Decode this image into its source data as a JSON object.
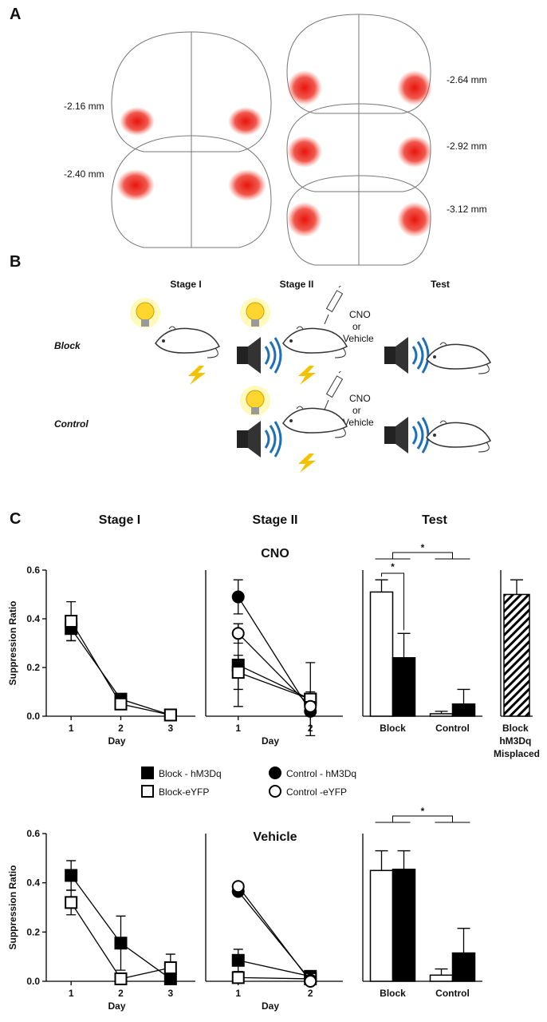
{
  "panels": {
    "A": {
      "label": "A",
      "levels": [
        "-2.16 mm",
        "-2.40 mm",
        "-2.64 mm",
        "-2.92 mm",
        "-3.12 mm"
      ]
    },
    "B": {
      "label": "B",
      "headings": [
        "Stage I",
        "Stage II",
        "Test"
      ],
      "rows": [
        "Block",
        "Control"
      ],
      "injection": [
        [
          "CNO",
          "or",
          "Vehicle"
        ],
        [
          "CNO",
          "or",
          "Vehicle"
        ]
      ]
    },
    "C": {
      "label": "C",
      "headings": [
        "Stage I",
        "Stage II",
        "Test"
      ],
      "rows": [
        "CNO",
        "Vehicle"
      ]
    }
  },
  "chart_data": [
    {
      "type": "line",
      "ylabel": "Suppression Ratio",
      "xlabel": "Day",
      "x": [
        1,
        2,
        3
      ],
      "xlim": [
        0.5,
        3.5
      ],
      "xticks": [
        1,
        2,
        3
      ],
      "ylim": [
        0,
        0.6
      ],
      "yticks": [
        {
          "value": 0,
          "label": "0.0"
        },
        {
          "value": 0.2,
          "label": "0.2"
        },
        {
          "value": 0.4,
          "label": "0.4"
        },
        {
          "value": 0.6,
          "label": "0.6"
        }
      ],
      "series": [
        {
          "name": "Block - hM3Dq",
          "color": "#000000",
          "marker": "square",
          "filled": true,
          "values": [
            0.36,
            0.07,
            0.005
          ],
          "errors": [
            0.05,
            0.02,
            0.01
          ]
        },
        {
          "name": "Block-eYFP",
          "color": "#000000",
          "marker": "square",
          "filled": false,
          "values": [
            0.39,
            0.05,
            0.005
          ],
          "errors": [
            0.08,
            0.02,
            0.01
          ]
        }
      ]
    },
    {
      "type": "line",
      "xlabel": "Day",
      "x": [
        1,
        2
      ],
      "xlim": [
        0.55,
        2.45
      ],
      "xticks": [
        1,
        2
      ],
      "ylim": [
        0,
        0.6
      ],
      "series": [
        {
          "name": "Block - hM3Dq",
          "color": "#000000",
          "marker": "square",
          "filled": true,
          "values": [
            0.21,
            0.07
          ],
          "errors": [
            0.17,
            0.03
          ]
        },
        {
          "name": "Block-eYFP",
          "color": "#000000",
          "marker": "square",
          "filled": false,
          "values": [
            0.18,
            0.07
          ],
          "errors": [
            0.07,
            0.15
          ]
        },
        {
          "name": "Control - hM3Dq",
          "color": "#000000",
          "marker": "circle",
          "filled": true,
          "values": [
            0.49,
            0.02
          ],
          "errors": [
            0.07,
            0.02
          ]
        },
        {
          "name": "Control -eYFP",
          "color": "#000000",
          "marker": "circle",
          "filled": false,
          "values": [
            0.34,
            0.04
          ],
          "errors": [
            0.04,
            0.02
          ]
        }
      ]
    },
    {
      "type": "bar",
      "categories": [
        "Block",
        "Control"
      ],
      "ylim": [
        0,
        0.6
      ],
      "annotations": [
        "*",
        "*"
      ],
      "series": [
        {
          "color": "#ffffff",
          "values": [
            0.51,
            0.01
          ],
          "errors": [
            0.05,
            0.01
          ]
        },
        {
          "color": "#000000",
          "values": [
            0.24,
            0.05
          ],
          "errors": [
            0.1,
            0.06
          ]
        }
      ]
    },
    {
      "type": "bar",
      "categories": [
        "Block hM3Dq Misplaced"
      ],
      "ylim": [
        0,
        0.6
      ],
      "series": [
        {
          "color": "#000000",
          "pattern": "hatch",
          "values": [
            0.5
          ],
          "errors": [
            0.06
          ]
        }
      ]
    },
    {
      "type": "line",
      "ylabel": "Suppression Ratio",
      "xlabel": "Day",
      "x": [
        1,
        2,
        3
      ],
      "xlim": [
        0.5,
        3.5
      ],
      "xticks": [
        1,
        2,
        3
      ],
      "ylim": [
        0,
        0.6
      ],
      "yticks": [
        {
          "value": 0,
          "label": "0.0"
        },
        {
          "value": 0.2,
          "label": "0.2"
        },
        {
          "value": 0.4,
          "label": "0.4"
        },
        {
          "value": 0.6,
          "label": "0.6"
        }
      ],
      "series": [
        {
          "name": "Block - hM3Dq",
          "color": "#000000",
          "marker": "square",
          "filled": true,
          "values": [
            0.43,
            0.155,
            0.01
          ],
          "errors": [
            0.06,
            0.11,
            0.02
          ]
        },
        {
          "name": "Block-eYFP",
          "color": "#000000",
          "marker": "square",
          "filled": false,
          "values": [
            0.32,
            0.01,
            0.055
          ],
          "errors": [
            0.05,
            0.02,
            0.055
          ]
        }
      ]
    },
    {
      "type": "line",
      "xlabel": "Day",
      "x": [
        1,
        2
      ],
      "xlim": [
        0.55,
        2.45
      ],
      "xticks": [
        1,
        2
      ],
      "ylim": [
        0,
        0.6
      ],
      "series": [
        {
          "name": "Block - hM3Dq",
          "color": "#000000",
          "marker": "square",
          "filled": true,
          "values": [
            0.085,
            0.02
          ],
          "errors": [
            0.045,
            0.01
          ]
        },
        {
          "name": "Block-eYFP",
          "color": "#000000",
          "marker": "square",
          "filled": false,
          "values": [
            0.015,
            0.01
          ],
          "errors": [
            0.01,
            0.01
          ]
        },
        {
          "name": "Control - hM3Dq",
          "color": "#000000",
          "marker": "circle",
          "filled": true,
          "values": [
            0.365,
            0.005
          ],
          "errors": [
            0.01,
            0.005
          ]
        },
        {
          "name": "Control -eYFP",
          "color": "#000000",
          "marker": "circle",
          "filled": false,
          "values": [
            0.385,
            0.0
          ],
          "errors": [
            0.01,
            0.005
          ]
        }
      ]
    },
    {
      "type": "bar",
      "categories": [
        "Block",
        "Control"
      ],
      "ylim": [
        0,
        0.6
      ],
      "annotations": [
        "*"
      ],
      "series": [
        {
          "color": "#ffffff",
          "values": [
            0.45,
            0.025
          ],
          "errors": [
            0.08,
            0.025
          ]
        },
        {
          "color": "#000000",
          "values": [
            0.455,
            0.115
          ],
          "errors": [
            0.075,
            0.1
          ]
        }
      ]
    }
  ]
}
